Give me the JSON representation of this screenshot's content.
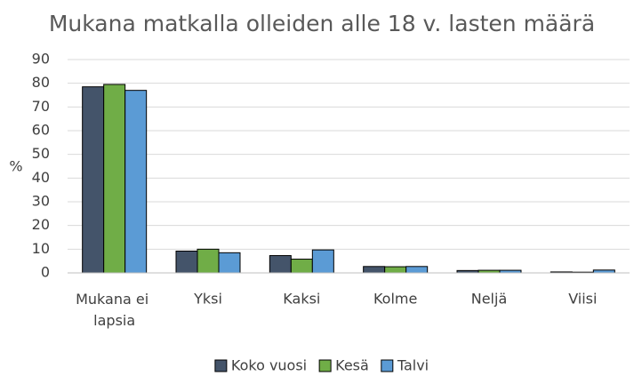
{
  "chart_data": {
    "type": "bar",
    "title": "Mukana matkalla olleiden alle 18 v. lasten määrä",
    "y_label": "%",
    "categories": [
      "Mukana ei lapsia",
      "Yksi",
      "Kaksi",
      "Kolme",
      "Neljä",
      "Viisi"
    ],
    "series": [
      {
        "name": "Koko vuosi",
        "color": "#44546a",
        "values": [
          78.5,
          9.2,
          7.3,
          2.7,
          1.0,
          0.4
        ]
      },
      {
        "name": "Kesä",
        "color": "#70ad47",
        "values": [
          79.5,
          10.0,
          5.8,
          2.6,
          1.1,
          0.3
        ]
      },
      {
        "name": "Talvi",
        "color": "#5b9bd5",
        "values": [
          77.0,
          8.5,
          9.7,
          2.7,
          1.1,
          1.2
        ]
      }
    ],
    "ylim": [
      0,
      90
    ],
    "yticks": [
      0,
      10,
      20,
      30,
      40,
      50,
      60,
      70,
      80,
      90
    ],
    "grid": true,
    "legend": "bottom"
  }
}
